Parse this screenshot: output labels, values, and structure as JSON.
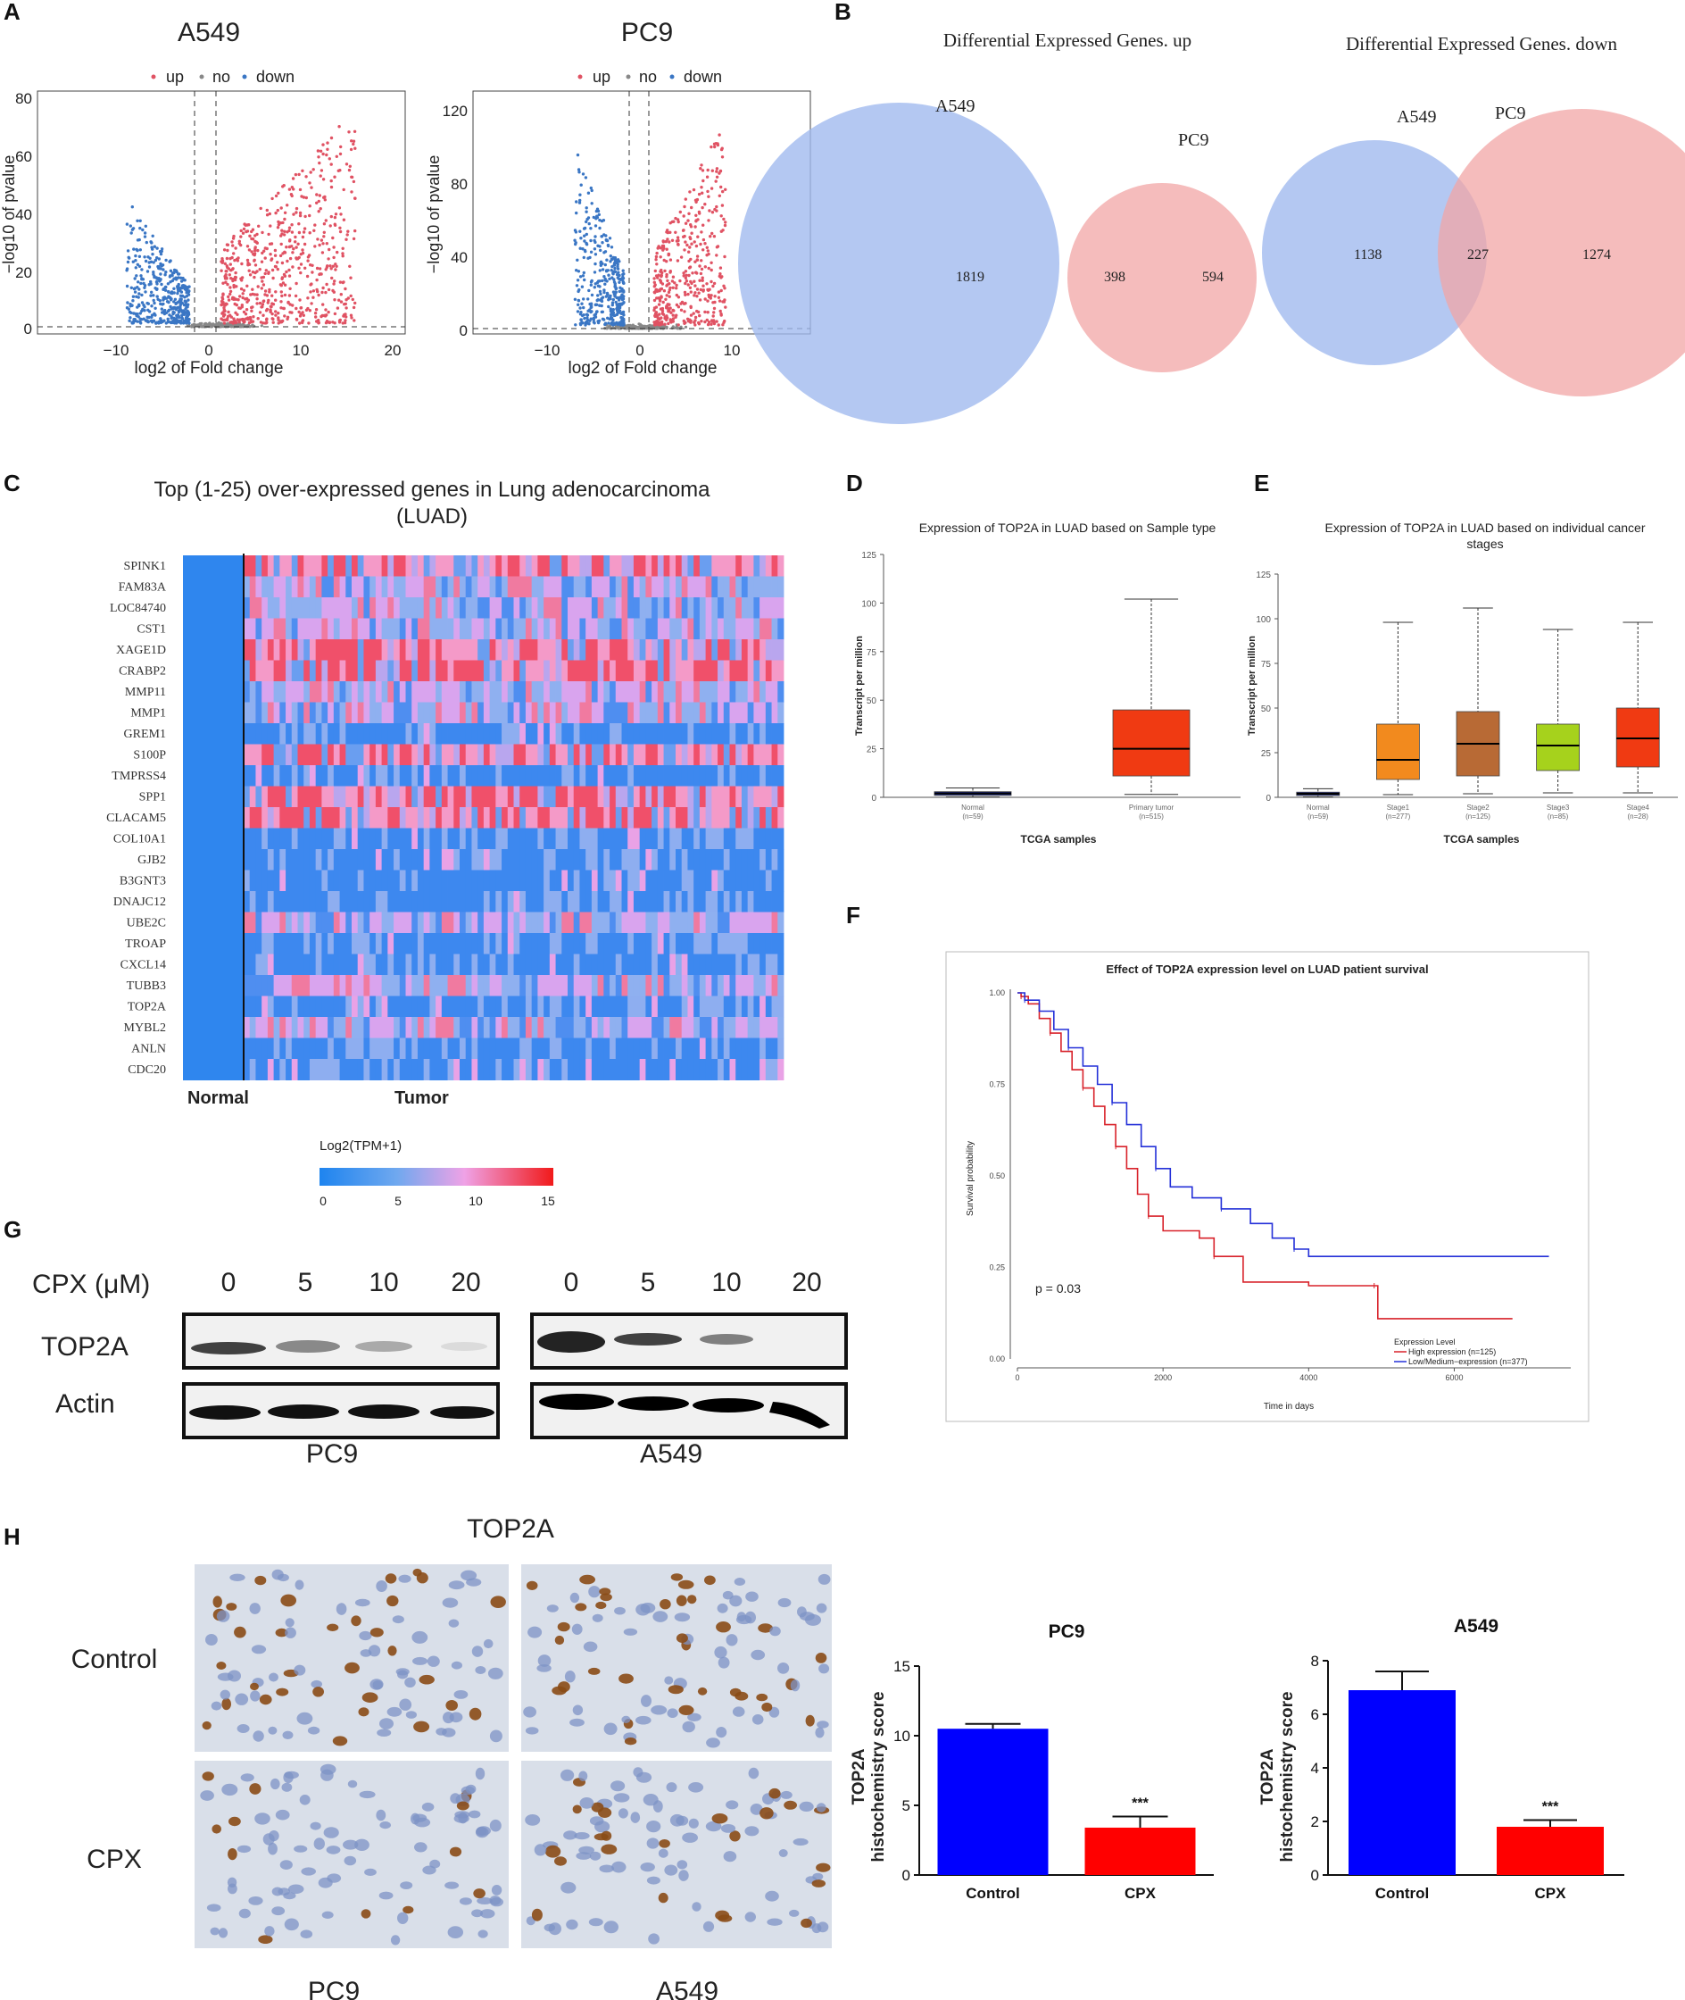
{
  "panel_labels": {
    "A": "A",
    "B": "B",
    "C": "C",
    "D": "D",
    "E": "E",
    "F": "F",
    "G": "G",
    "H": "H"
  },
  "panel_a": {
    "legend": {
      "up": "up",
      "no": "no",
      "down": "down"
    },
    "xlabel": "log2 of Fold change",
    "ylabel": "−log10 of pvalue",
    "plots": [
      {
        "title": "A549",
        "xticks": [
          "−10",
          "0",
          "10",
          "20"
        ],
        "yticks": [
          "0",
          "20",
          "40",
          "60",
          "80"
        ]
      },
      {
        "title": "PC9",
        "xticks": [
          "−10",
          "0",
          "10"
        ],
        "yticks": [
          "0",
          "40",
          "80",
          "120"
        ]
      }
    ],
    "colors": {
      "up": "#e05263",
      "down": "#3a76c4",
      "no": "#888888"
    }
  },
  "panel_b": {
    "up": {
      "title": "Differential Expressed Genes. up",
      "set1": "A549",
      "set2": "PC9",
      "only1": "1819",
      "both": "398",
      "only2": "594"
    },
    "down": {
      "title": "Differential Expressed Genes. down",
      "set1": "A549",
      "set2": "PC9",
      "only1": "1138",
      "both": "227",
      "only2": "1274"
    },
    "colors": {
      "set1": "#9fb9ee",
      "set2": "#f2a6a6"
    }
  },
  "panel_c": {
    "title_line1": "Top (1-25) over-expressed genes in Lung adenocarcinoma",
    "title_line2": "(LUAD)",
    "genes": [
      "SPINK1",
      "FAM83A",
      "LOC84740",
      "CST1",
      "XAGE1D",
      "CRABP2",
      "MMP11",
      "MMP1",
      "GREM1",
      "S100P",
      "TMPRSS4",
      "SPP1",
      "CLACAM5",
      "COL10A1",
      "GJB2",
      "B3GNT3",
      "DNAJC12",
      "UBE2C",
      "TROAP",
      "CXCL14",
      "TUBB3",
      "TOP2A",
      "MYBL2",
      "ANLN",
      "CDC20"
    ],
    "group_normal": "Normal",
    "group_tumor": "Tumor",
    "colorbar_title": "Log2(TPM+1)",
    "colorbar_ticks": [
      "0",
      "5",
      "10",
      "15"
    ]
  },
  "panel_d": {
    "title": "Expression of TOP2A in LUAD based on Sample type",
    "ylabel": "Transcript per million",
    "xlabel": "TCGA samples",
    "yticks": [
      "0",
      "25",
      "50",
      "75",
      "100",
      "125"
    ],
    "chart_data": {
      "type": "box",
      "ylim": [
        0,
        125
      ],
      "groups": [
        {
          "name": "Normal",
          "n": "(n=59)",
          "min": 0.2,
          "q1": 1.0,
          "median": 2.0,
          "q3": 2.9,
          "max": 4.8,
          "color": "#1c2a8a"
        },
        {
          "name": "Primary tumor",
          "n": "(n=515)",
          "min": 1.5,
          "q1": 11,
          "median": 25,
          "q3": 45,
          "max": 102,
          "color": "#f03a12"
        }
      ]
    }
  },
  "panel_e": {
    "title_line1": "Expression of TOP2A in LUAD based on individual cancer",
    "title_line2": "stages",
    "ylabel": "Transcript per million",
    "xlabel": "TCGA samples",
    "yticks": [
      "0",
      "25",
      "50",
      "75",
      "100",
      "125"
    ],
    "chart_data": {
      "type": "box",
      "ylim": [
        0,
        125
      ],
      "groups": [
        {
          "name": "Normal",
          "n": "(n=59)",
          "min": 0.2,
          "q1": 1.0,
          "median": 2.0,
          "q3": 2.9,
          "max": 4.8,
          "color": "#1c2a8a"
        },
        {
          "name": "Stage1",
          "n": "(n=277)",
          "min": 1.5,
          "q1": 10,
          "median": 21,
          "q3": 41,
          "max": 98,
          "color": "#f28a1e"
        },
        {
          "name": "Stage2",
          "n": "(n=125)",
          "min": 2.0,
          "q1": 12,
          "median": 30,
          "q3": 48,
          "max": 106,
          "color": "#b86a35"
        },
        {
          "name": "Stage3",
          "n": "(n=85)",
          "min": 2.5,
          "q1": 15,
          "median": 29,
          "q3": 41,
          "max": 94,
          "color": "#a6d21c"
        },
        {
          "name": "Stage4",
          "n": "(n=28)",
          "min": 2.5,
          "q1": 17,
          "median": 33,
          "q3": 50,
          "max": 98,
          "color": "#f03a12"
        }
      ]
    }
  },
  "panel_f": {
    "title": "Effect of TOP2A expression level on LUAD patient survival",
    "ylabel": "Survival probability",
    "xlabel": "Time in days",
    "yticks": [
      "0.00",
      "0.25",
      "0.50",
      "0.75",
      "1.00"
    ],
    "xticks": [
      "0",
      "2000",
      "4000",
      "6000"
    ],
    "pvalue": "p = 0.03",
    "legend_title": "Expression Level",
    "legend_high": "High expression (n=125)",
    "legend_low": "Low/Medium−expression (n=377)",
    "chart_data": {
      "type": "line",
      "xlim": [
        0,
        7600
      ],
      "ylim": [
        0,
        1
      ],
      "series": [
        {
          "name": "High expression (n=125)",
          "color": "#d8222a",
          "points": [
            [
              0,
              1
            ],
            [
              50,
              0.99
            ],
            [
              150,
              0.97
            ],
            [
              300,
              0.93
            ],
            [
              450,
              0.89
            ],
            [
              600,
              0.84
            ],
            [
              750,
              0.79
            ],
            [
              900,
              0.74
            ],
            [
              1050,
              0.69
            ],
            [
              1200,
              0.64
            ],
            [
              1350,
              0.58
            ],
            [
              1500,
              0.52
            ],
            [
              1650,
              0.45
            ],
            [
              1800,
              0.39
            ],
            [
              2000,
              0.35
            ],
            [
              2500,
              0.33
            ],
            [
              2700,
              0.28
            ],
            [
              3100,
              0.21
            ],
            [
              4000,
              0.2
            ],
            [
              4900,
              0.2
            ],
            [
              4950,
              0.11
            ],
            [
              6800,
              0.11
            ]
          ]
        },
        {
          "name": "Low/Medium-expression (n=377)",
          "color": "#2430d8",
          "points": [
            [
              0,
              1
            ],
            [
              100,
              0.98
            ],
            [
              300,
              0.95
            ],
            [
              500,
              0.9
            ],
            [
              700,
              0.85
            ],
            [
              900,
              0.8
            ],
            [
              1100,
              0.75
            ],
            [
              1300,
              0.7
            ],
            [
              1500,
              0.64
            ],
            [
              1700,
              0.58
            ],
            [
              1900,
              0.52
            ],
            [
              2100,
              0.47
            ],
            [
              2400,
              0.44
            ],
            [
              2800,
              0.41
            ],
            [
              3200,
              0.37
            ],
            [
              3500,
              0.33
            ],
            [
              3800,
              0.3
            ],
            [
              4000,
              0.28
            ],
            [
              7300,
              0.28
            ]
          ]
        }
      ]
    }
  },
  "panel_g": {
    "cpx_label": "CPX (μM)",
    "doses": [
      "0",
      "5",
      "10",
      "20",
      "0",
      "5",
      "10",
      "20"
    ],
    "row_top2a": "TOP2A",
    "row_actin": "Actin",
    "cell_pc9": "PC9",
    "cell_a549": "A549"
  },
  "panel_h": {
    "title": "TOP2A",
    "row_control": "Control",
    "row_cpx": "CPX",
    "col_pc9": "PC9",
    "col_a549": "A549",
    "ylabel_line1": "TOP2A",
    "ylabel_line2": "histochemistry score",
    "significance": "***",
    "chart_data": [
      {
        "type": "bar",
        "title": "PC9",
        "categories": [
          "Control",
          "CPX"
        ],
        "values": [
          10.5,
          3.4
        ],
        "errors": [
          0.35,
          0.8
        ],
        "ylim": [
          0,
          15
        ],
        "yticks": [
          "0",
          "5",
          "10",
          "15"
        ],
        "colors": [
          "#0000ff",
          "#ff0000"
        ]
      },
      {
        "type": "bar",
        "title": "A549",
        "categories": [
          "Control",
          "CPX"
        ],
        "values": [
          6.9,
          1.8
        ],
        "errors": [
          0.7,
          0.25
        ],
        "ylim": [
          0,
          8
        ],
        "yticks": [
          "0",
          "2",
          "4",
          "6",
          "8"
        ],
        "colors": [
          "#0000ff",
          "#ff0000"
        ]
      }
    ]
  }
}
